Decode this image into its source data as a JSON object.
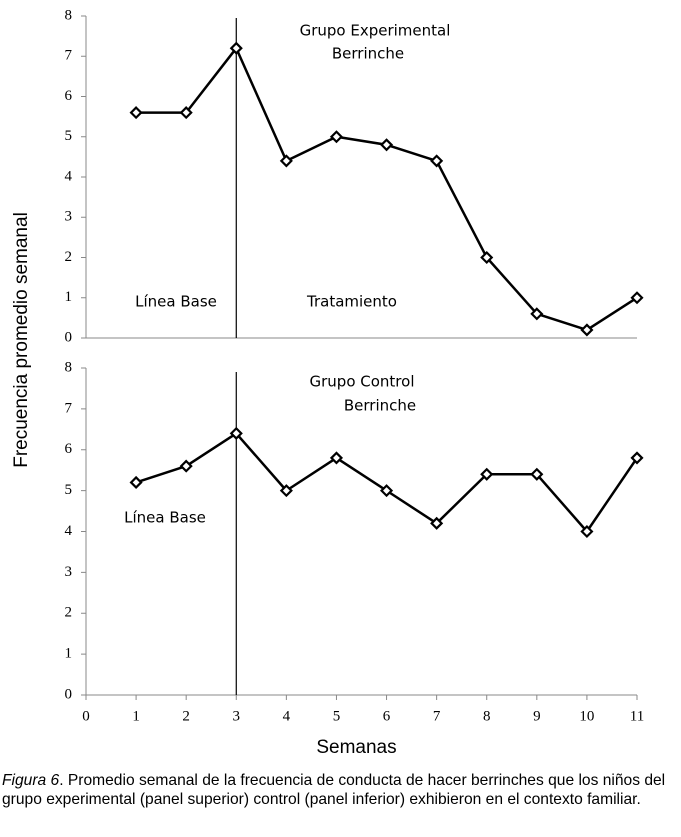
{
  "ylabel": "Frecuencia promedio semanal",
  "caption": {
    "label": "Figura 6",
    "text": ". Promedio semanal de la frecuencia de conducta de hacer berrinches que los niños del grupo experimental (panel superior) control (panel inferior) exhibieron en el contexto familiar."
  },
  "chart_data": [
    {
      "type": "line",
      "annotations": [
        "Grupo Experimental",
        "Berrinche",
        "Línea Base",
        "Tratamiento"
      ],
      "x": [
        1,
        2,
        3,
        4,
        5,
        6,
        7,
        8,
        9,
        10,
        11
      ],
      "series": [
        {
          "color": "#000000",
          "values": [
            5.6,
            5.6,
            7.2,
            4.4,
            5.0,
            4.8,
            4.4,
            2.0,
            0.6,
            0.2,
            1.0
          ]
        }
      ],
      "phase_line_x": 3,
      "xlim": [
        0,
        11
      ],
      "ylim": [
        0,
        8
      ],
      "yticks": [
        0,
        1,
        2,
        3,
        4,
        5,
        6,
        7,
        8
      ]
    },
    {
      "type": "line",
      "annotations": [
        "Grupo Control",
        "Berrinche",
        "Línea Base"
      ],
      "x": [
        1,
        2,
        3,
        4,
        5,
        6,
        7,
        8,
        9,
        10,
        11
      ],
      "series": [
        {
          "color": "#000000",
          "values": [
            5.2,
            5.6,
            6.4,
            5.0,
            5.8,
            5.0,
            4.2,
            5.4,
            5.4,
            4.0,
            5.8
          ]
        }
      ],
      "phase_line_x": 3,
      "xlabel": "Semanas",
      "xlim": [
        0,
        11
      ],
      "xticks": [
        0,
        1,
        2,
        3,
        4,
        5,
        6,
        7,
        8,
        9,
        10,
        11
      ],
      "ylim": [
        0,
        8
      ],
      "yticks": [
        0,
        1,
        2,
        3,
        4,
        5,
        6,
        7,
        8
      ]
    }
  ]
}
